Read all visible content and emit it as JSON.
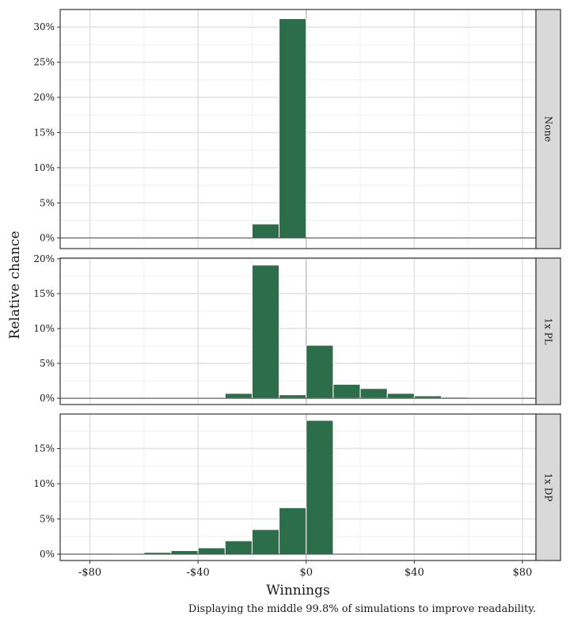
{
  "chart_data": {
    "type": "bar",
    "xlabel": "Winnings",
    "ylabel": "Relative chance",
    "caption": "Displaying the middle 99.8% of simulations to improve readability.",
    "x_ticks": [
      "-$80",
      "-$40",
      "$0",
      "$40",
      "$80"
    ],
    "x_tick_values": [
      -80,
      -40,
      0,
      40,
      80
    ],
    "xlim": [
      -91,
      85
    ],
    "bin_width": 10,
    "bar_color": "#2c6e49",
    "grid": true,
    "panels": [
      {
        "label": "None",
        "ylim": [
          -1.5,
          32.5
        ],
        "y_ticks": [
          "0%",
          "5%",
          "10%",
          "15%",
          "20%",
          "25%",
          "30%"
        ],
        "y_tick_values": [
          0,
          5,
          10,
          15,
          20,
          25,
          30
        ],
        "bins": [
          {
            "x0": -20,
            "x1": -10,
            "value": 2.0
          },
          {
            "x0": -10,
            "x1": 0,
            "value": 31.2
          }
        ]
      },
      {
        "label": "1x PL",
        "ylim": [
          -0.9,
          20.1
        ],
        "y_ticks": [
          "0%",
          "5%",
          "10%",
          "15%",
          "20%"
        ],
        "y_tick_values": [
          0,
          5,
          10,
          15,
          20
        ],
        "bins": [
          {
            "x0": -30,
            "x1": -20,
            "value": 0.7
          },
          {
            "x0": -20,
            "x1": -10,
            "value": 19.1
          },
          {
            "x0": -10,
            "x1": 0,
            "value": 0.5
          },
          {
            "x0": 0,
            "x1": 10,
            "value": 7.6
          },
          {
            "x0": 10,
            "x1": 20,
            "value": 2.0
          },
          {
            "x0": 20,
            "x1": 30,
            "value": 1.4
          },
          {
            "x0": 30,
            "x1": 40,
            "value": 0.7
          },
          {
            "x0": 40,
            "x1": 50,
            "value": 0.35
          },
          {
            "x0": 50,
            "x1": 60,
            "value": 0.15
          }
        ]
      },
      {
        "label": "1x DP",
        "ylim": [
          -0.9,
          19.9
        ],
        "y_ticks": [
          "0%",
          "5%",
          "10%",
          "15%"
        ],
        "y_tick_values": [
          0,
          5,
          10,
          15
        ],
        "bins": [
          {
            "x0": -70,
            "x1": -60,
            "value": 0.1
          },
          {
            "x0": -60,
            "x1": -50,
            "value": 0.25
          },
          {
            "x0": -50,
            "x1": -40,
            "value": 0.5
          },
          {
            "x0": -40,
            "x1": -30,
            "value": 0.9
          },
          {
            "x0": -30,
            "x1": -20,
            "value": 1.9
          },
          {
            "x0": -20,
            "x1": -10,
            "value": 3.5
          },
          {
            "x0": -10,
            "x1": 0,
            "value": 6.6
          },
          {
            "x0": 0,
            "x1": 10,
            "value": 19.0
          }
        ]
      }
    ]
  }
}
